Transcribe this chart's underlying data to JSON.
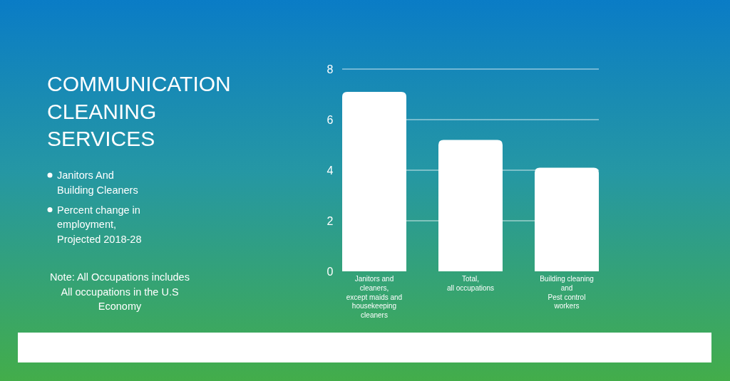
{
  "chart_data": {
    "type": "bar",
    "title": "COMMUNICATION\nCLEANING\nSERVICES",
    "subtitle": "Janitors And\nBuilding Cleaners",
    "annotations": [
      "Percent change in\nemployment,\nProjected 2018-28",
      "Note: All Occupations includes\nAll occupations in the U.S\nEconomy"
    ],
    "categories": [
      "Janitors and\ncleaners,\nexcept maids and\nhousekeeping\ncleaners",
      "Total,\nall occupations",
      "Building cleaning\nand\nPest control\nworkers"
    ],
    "values": [
      7.1,
      5.2,
      4.1
    ],
    "color": "#ffffff",
    "ylim": [
      0,
      8
    ],
    "yticks": [
      0,
      2,
      4,
      6,
      8
    ],
    "grid": "y"
  }
}
